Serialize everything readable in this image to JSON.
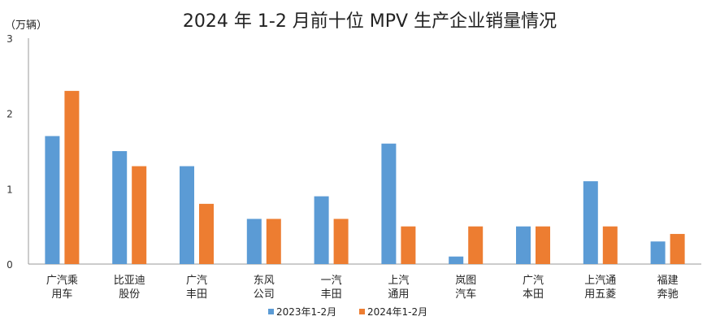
{
  "chart_data": {
    "type": "bar",
    "title": "2024 年 1-2 月前十位 MPV 生产企业销量情况",
    "ylabel": "（万辆）",
    "xlabel": "",
    "ylim": [
      0,
      3
    ],
    "yticks": [
      "0",
      "1",
      "2",
      "3"
    ],
    "grid": false,
    "legend_position": "bottom",
    "categories": [
      [
        "广汽乘",
        "用车"
      ],
      [
        "比亚迪",
        "股份"
      ],
      [
        "广汽",
        "丰田"
      ],
      [
        "东风",
        "公司"
      ],
      [
        "一汽",
        "丰田"
      ],
      [
        "上汽",
        "通用"
      ],
      [
        "岚图",
        "汽车"
      ],
      [
        "广汽",
        "本田"
      ],
      [
        "上汽通",
        "用五菱"
      ],
      [
        "福建",
        "奔驰"
      ]
    ],
    "series": [
      {
        "name": "2023年1-2月",
        "color": "#5B9BD5",
        "values": [
          1.7,
          1.5,
          1.3,
          0.6,
          0.9,
          1.6,
          0.1,
          0.5,
          1.1,
          0.3
        ]
      },
      {
        "name": "2024年1-2月",
        "color": "#ED7D31",
        "values": [
          2.3,
          1.3,
          0.8,
          0.6,
          0.6,
          0.5,
          0.5,
          0.5,
          0.5,
          0.4
        ]
      }
    ]
  }
}
